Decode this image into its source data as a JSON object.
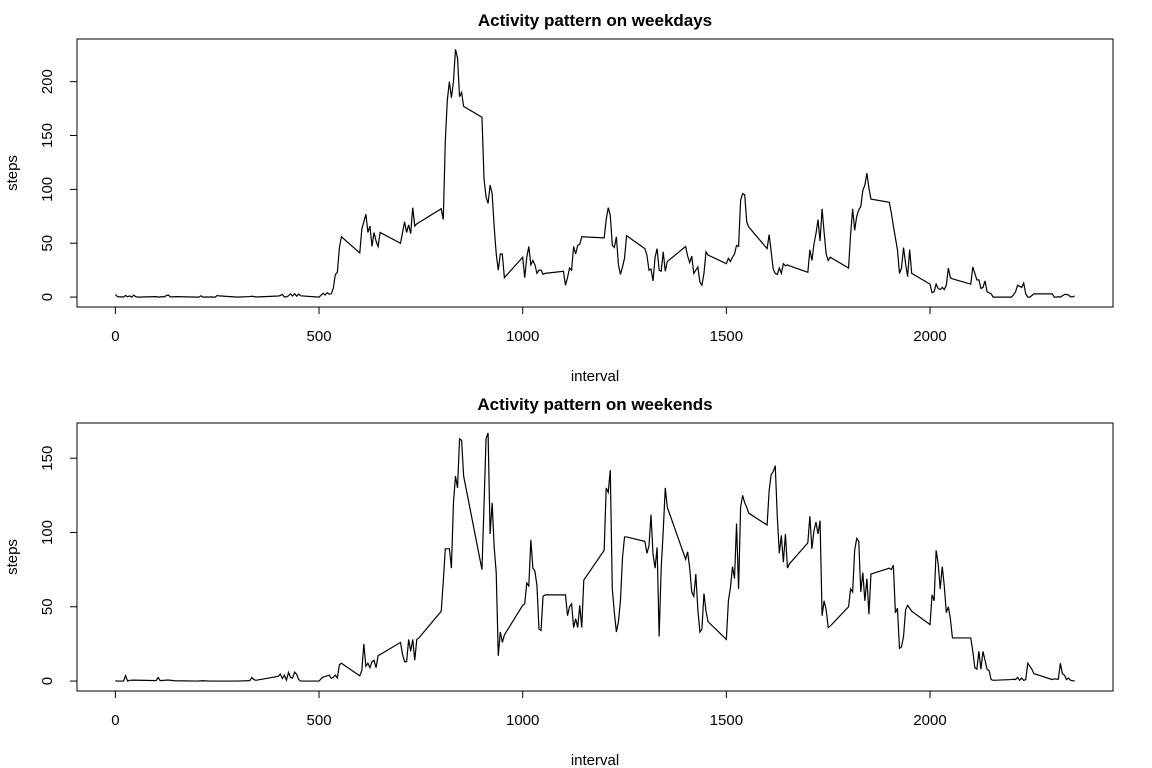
{
  "chart_data": [
    {
      "type": "line",
      "title": "Activity pattern on weekdays",
      "x_label": "interval",
      "y_label": "steps",
      "color": "#000000",
      "xlim": [
        -94.2,
        2449.2
      ],
      "ylim": [
        -9.2,
        239.6
      ],
      "xticks": [
        0,
        500,
        1000,
        1500,
        2000
      ],
      "yticks": [
        0,
        50,
        100,
        150,
        200
      ],
      "x": [
        0,
        5,
        10,
        15,
        20,
        25,
        30,
        35,
        40,
        45,
        50,
        55,
        100,
        105,
        110,
        115,
        120,
        125,
        130,
        135,
        140,
        145,
        150,
        200,
        205,
        210,
        215,
        220,
        225,
        230,
        235,
        240,
        245,
        250,
        255,
        300,
        330,
        335,
        340,
        345,
        400,
        405,
        410,
        415,
        420,
        425,
        430,
        435,
        440,
        445,
        450,
        455,
        500,
        505,
        510,
        515,
        520,
        525,
        530,
        535,
        540,
        545,
        550,
        555,
        600,
        605,
        610,
        615,
        620,
        625,
        630,
        635,
        640,
        645,
        650,
        700,
        705,
        710,
        715,
        720,
        725,
        730,
        735,
        740,
        800,
        805,
        810,
        815,
        820,
        825,
        830,
        835,
        840,
        845,
        850,
        855,
        900,
        905,
        910,
        915,
        920,
        925,
        930,
        935,
        940,
        945,
        950,
        955,
        1000,
        1005,
        1010,
        1015,
        1020,
        1025,
        1030,
        1035,
        1040,
        1045,
        1050,
        1055,
        1100,
        1105,
        1110,
        1115,
        1120,
        1125,
        1130,
        1135,
        1140,
        1145,
        1200,
        1205,
        1210,
        1215,
        1220,
        1225,
        1230,
        1235,
        1240,
        1245,
        1250,
        1255,
        1300,
        1305,
        1310,
        1315,
        1320,
        1325,
        1330,
        1335,
        1340,
        1345,
        1350,
        1355,
        1400,
        1405,
        1410,
        1415,
        1420,
        1425,
        1430,
        1435,
        1440,
        1445,
        1450,
        1455,
        1500,
        1505,
        1510,
        1515,
        1520,
        1525,
        1530,
        1535,
        1540,
        1545,
        1550,
        1555,
        1600,
        1605,
        1610,
        1615,
        1620,
        1625,
        1630,
        1635,
        1640,
        1645,
        1650,
        1655,
        1700,
        1705,
        1710,
        1715,
        1720,
        1725,
        1730,
        1735,
        1740,
        1745,
        1750,
        1755,
        1800,
        1805,
        1810,
        1815,
        1820,
        1825,
        1830,
        1835,
        1840,
        1845,
        1850,
        1855,
        1900,
        1905,
        1910,
        1915,
        1920,
        1925,
        1930,
        1935,
        1940,
        1945,
        1950,
        1955,
        2000,
        2005,
        2010,
        2015,
        2020,
        2025,
        2030,
        2035,
        2040,
        2045,
        2050,
        2055,
        2100,
        2105,
        2110,
        2115,
        2120,
        2125,
        2130,
        2135,
        2140,
        2145,
        2150,
        2155,
        2200,
        2205,
        2210,
        2215,
        2220,
        2225,
        2230,
        2235,
        2240,
        2245,
        2250,
        2255,
        2300,
        2305,
        2310,
        2315,
        2320,
        2325,
        2330,
        2335,
        2340,
        2345,
        2350,
        2355
      ],
      "values": [
        2.3,
        0.5,
        0.2,
        0.2,
        0.1,
        1.5,
        0.3,
        1.1,
        0,
        1.8,
        0.4,
        0,
        0.4,
        0,
        0.2,
        0.4,
        0,
        1.4,
        2,
        0.2,
        0.2,
        0.3,
        0.4,
        0,
        0,
        1.2,
        0,
        0,
        0.2,
        0,
        0.2,
        0,
        0,
        1.5,
        1.1,
        0,
        0.5,
        0.8,
        0.6,
        0.1,
        1,
        1.4,
        2.5,
        0,
        0.3,
        1.1,
        3,
        1,
        3.2,
        0.8,
        2.8,
        1.2,
        0,
        1.8,
        3.5,
        1.9,
        4.1,
        2.7,
        3,
        8,
        21,
        23,
        46,
        56,
        41,
        63,
        70,
        77,
        60,
        66,
        47,
        60,
        52,
        47,
        60,
        50,
        60,
        70,
        60,
        67,
        59,
        83,
        66,
        68,
        82,
        72,
        145,
        183,
        200,
        185,
        200,
        230,
        222,
        186,
        190,
        177,
        167,
        110,
        93,
        87,
        104,
        96,
        65,
        40,
        25,
        40,
        40,
        18,
        37,
        18,
        37,
        47,
        30,
        34,
        30,
        22,
        25,
        25,
        21,
        22,
        24,
        11,
        18,
        27,
        25,
        47,
        40,
        48,
        49,
        56,
        55,
        72,
        83,
        76,
        48,
        46,
        56,
        30,
        21,
        28,
        36,
        57,
        45,
        39,
        25,
        26,
        15,
        37,
        45,
        25,
        24,
        42,
        24,
        33,
        47,
        38,
        32,
        38,
        22,
        25,
        28,
        14,
        11,
        22,
        42,
        39,
        31,
        36,
        33,
        37,
        40,
        48,
        47,
        90,
        96,
        95,
        70,
        65,
        45,
        58,
        42,
        26,
        22,
        21,
        27,
        22,
        31,
        29,
        30,
        29,
        23,
        44,
        34,
        49,
        59,
        72,
        52,
        82,
        60,
        40,
        34,
        37,
        27,
        58,
        82,
        62,
        75,
        81,
        84,
        99,
        104,
        115,
        101,
        91,
        88,
        78,
        66,
        55,
        44,
        22,
        27,
        46,
        31,
        19,
        44,
        22,
        12,
        4,
        5,
        12,
        8,
        7,
        9,
        7,
        11,
        27,
        18,
        17,
        12,
        28,
        22,
        16,
        16,
        8,
        9,
        15,
        5,
        4,
        3,
        0,
        0,
        2,
        5,
        11,
        10,
        9,
        13,
        3,
        0,
        0,
        1.5,
        3,
        3,
        0,
        0,
        0.3,
        0,
        1.2,
        2.4,
        2.5,
        2,
        0.2,
        0.2,
        1.1
      ]
    },
    {
      "type": "line",
      "title": "Activity pattern on weekends",
      "x_label": "interval",
      "y_label": "steps",
      "color": "#000000",
      "xlim": [
        -94.2,
        2449.2
      ],
      "ylim": [
        -6.7,
        173.7
      ],
      "xticks": [
        0,
        500,
        1000,
        1500,
        2000
      ],
      "yticks": [
        0,
        50,
        100,
        150
      ],
      "x": [
        0,
        5,
        10,
        15,
        20,
        25,
        30,
        35,
        45,
        100,
        105,
        110,
        130,
        145,
        200,
        215,
        230,
        245,
        300,
        330,
        335,
        340,
        345,
        400,
        405,
        410,
        415,
        420,
        425,
        430,
        435,
        440,
        445,
        450,
        455,
        500,
        505,
        510,
        515,
        520,
        525,
        530,
        535,
        540,
        545,
        550,
        555,
        600,
        605,
        610,
        615,
        620,
        625,
        630,
        635,
        640,
        645,
        700,
        705,
        710,
        715,
        720,
        725,
        730,
        735,
        740,
        745,
        800,
        805,
        810,
        815,
        820,
        825,
        830,
        835,
        840,
        845,
        850,
        855,
        900,
        905,
        910,
        915,
        920,
        925,
        930,
        935,
        940,
        945,
        950,
        955,
        1000,
        1005,
        1010,
        1015,
        1020,
        1025,
        1030,
        1035,
        1040,
        1045,
        1050,
        1055,
        1100,
        1105,
        1110,
        1115,
        1120,
        1125,
        1130,
        1135,
        1140,
        1145,
        1150,
        1200,
        1205,
        1210,
        1215,
        1220,
        1225,
        1230,
        1235,
        1240,
        1245,
        1250,
        1255,
        1300,
        1305,
        1310,
        1315,
        1320,
        1325,
        1330,
        1335,
        1340,
        1345,
        1350,
        1355,
        1400,
        1405,
        1410,
        1415,
        1420,
        1425,
        1430,
        1435,
        1440,
        1445,
        1450,
        1455,
        1500,
        1505,
        1510,
        1515,
        1520,
        1525,
        1530,
        1535,
        1540,
        1545,
        1550,
        1555,
        1600,
        1605,
        1610,
        1615,
        1620,
        1625,
        1630,
        1635,
        1640,
        1645,
        1650,
        1655,
        1700,
        1705,
        1710,
        1715,
        1720,
        1725,
        1730,
        1735,
        1740,
        1745,
        1750,
        1755,
        1800,
        1805,
        1810,
        1815,
        1820,
        1825,
        1830,
        1835,
        1840,
        1845,
        1850,
        1855,
        1900,
        1905,
        1910,
        1915,
        1920,
        1925,
        1930,
        1935,
        1940,
        1945,
        1950,
        1955,
        2000,
        2005,
        2010,
        2015,
        2020,
        2025,
        2030,
        2035,
        2040,
        2045,
        2050,
        2055,
        2100,
        2105,
        2110,
        2115,
        2120,
        2125,
        2130,
        2135,
        2140,
        2145,
        2150,
        2155,
        2200,
        2205,
        2210,
        2215,
        2220,
        2225,
        2230,
        2235,
        2240,
        2245,
        2250,
        2255,
        2300,
        2305,
        2310,
        2315,
        2320,
        2325,
        2330,
        2335,
        2340,
        2345,
        2350,
        2355
      ],
      "values": [
        0.2,
        0,
        0,
        0,
        0,
        3.7,
        0,
        0.5,
        0.6,
        0.3,
        2.4,
        0.3,
        0.7,
        0.2,
        0,
        0.2,
        0,
        0,
        0,
        0.3,
        2.4,
        1,
        0.5,
        3.2,
        4.7,
        1.7,
        4,
        0.6,
        5.8,
        2.3,
        2,
        6,
        4.6,
        1,
        0,
        0,
        1.5,
        2.7,
        3,
        3.5,
        4,
        1.8,
        2.6,
        4,
        2,
        11,
        12,
        3.5,
        7,
        25,
        10,
        12,
        9,
        13,
        14,
        9,
        17,
        26,
        18,
        13,
        13,
        28,
        20,
        28,
        14,
        28,
        29,
        47,
        67,
        89,
        89,
        89,
        76,
        120,
        138,
        130,
        163,
        162,
        138,
        75,
        118,
        163,
        167,
        99,
        120,
        90,
        73,
        17,
        33,
        26,
        31,
        51,
        52,
        66,
        64,
        95,
        76,
        74,
        64,
        35,
        34,
        57,
        58,
        58,
        58,
        44,
        50,
        52,
        36,
        42,
        36,
        51,
        36,
        68,
        88,
        130,
        127,
        142,
        62,
        46,
        33,
        40,
        54,
        83,
        97,
        97,
        94,
        86,
        91,
        112,
        85,
        76,
        90,
        30,
        76,
        101,
        130,
        117,
        82,
        87,
        76,
        60,
        57,
        72,
        48,
        33,
        35,
        59,
        47,
        40,
        28,
        54,
        63,
        77,
        69,
        106,
        62,
        117,
        125,
        120,
        117,
        113,
        105,
        128,
        139,
        141,
        145,
        111,
        86,
        98,
        80,
        99,
        76,
        79,
        93,
        111,
        89,
        101,
        107,
        99,
        108,
        44,
        54,
        48,
        36,
        37,
        50,
        62,
        60,
        88,
        96,
        94,
        60,
        73,
        54,
        69,
        45,
        72,
        76,
        75,
        78,
        46,
        49,
        22,
        23,
        30,
        48,
        51,
        49,
        47,
        38,
        58,
        54,
        88,
        79,
        62,
        77,
        64,
        46,
        50,
        42,
        29,
        29,
        20,
        9,
        8,
        20,
        8,
        20,
        14,
        8,
        7,
        1,
        0.5,
        1,
        1.2,
        1,
        2.5,
        0.5,
        2,
        0.4,
        1,
        12,
        10,
        8,
        5,
        1,
        1.5,
        1.3,
        1.2,
        12,
        5,
        4,
        1,
        2,
        0.5,
        0.2,
        0.1
      ]
    }
  ]
}
